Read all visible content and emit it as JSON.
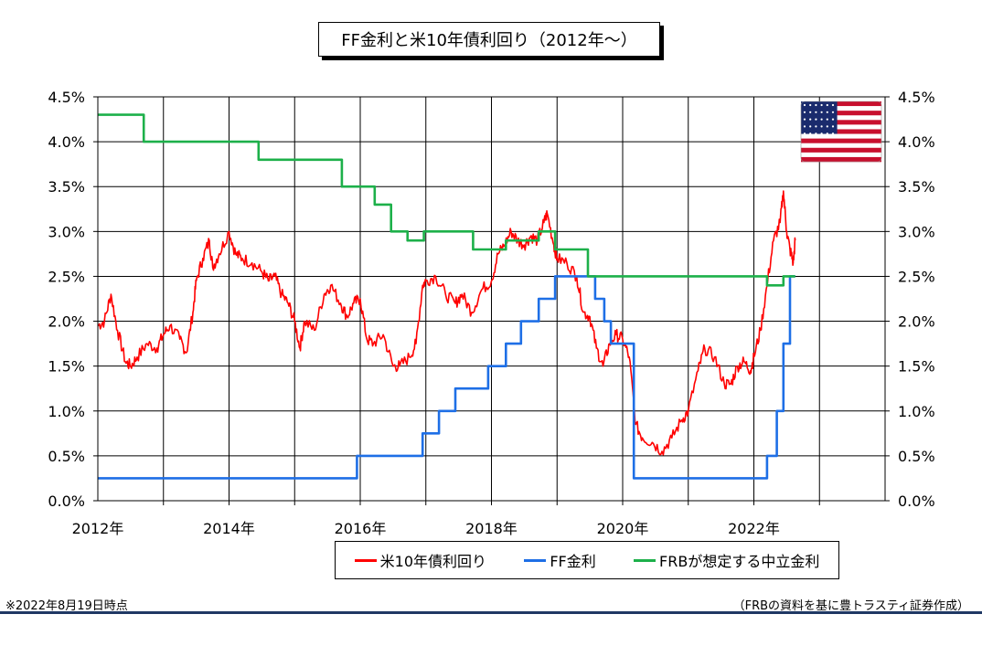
{
  "chart_data": {
    "type": "line",
    "title": "FF金利と米10年債利回り（2012年～）",
    "y_axis": {
      "min": 0,
      "max": 4.5,
      "step": 0.5,
      "tick_labels": [
        "0.0%",
        "0.5%",
        "1.0%",
        "1.5%",
        "2.0%",
        "2.5%",
        "3.0%",
        "3.5%",
        "4.0%",
        "4.5%"
      ]
    },
    "x_axis": {
      "min": 2012,
      "max": 2024,
      "tick_labels": [
        {
          "year": 2012,
          "label": "2012年"
        },
        {
          "year": 2014,
          "label": "2014年"
        },
        {
          "year": 2016,
          "label": "2016年"
        },
        {
          "year": 2018,
          "label": "2018年"
        },
        {
          "year": 2020,
          "label": "2020年"
        },
        {
          "year": 2022,
          "label": "2022年"
        }
      ]
    },
    "grid": true,
    "legend_position": "bottom",
    "series": [
      {
        "name": "米10年債利回り",
        "color": "#ff0000",
        "style": "line",
        "points": [
          [
            2012.0,
            1.95
          ],
          [
            2012.1,
            2.0
          ],
          [
            2012.2,
            2.3
          ],
          [
            2012.3,
            1.9
          ],
          [
            2012.42,
            1.55
          ],
          [
            2012.5,
            1.5
          ],
          [
            2012.6,
            1.6
          ],
          [
            2012.75,
            1.75
          ],
          [
            2012.9,
            1.7
          ],
          [
            2013.0,
            1.85
          ],
          [
            2013.1,
            1.95
          ],
          [
            2013.25,
            1.8
          ],
          [
            2013.35,
            1.65
          ],
          [
            2013.45,
            2.1
          ],
          [
            2013.5,
            2.45
          ],
          [
            2013.6,
            2.7
          ],
          [
            2013.7,
            2.9
          ],
          [
            2013.75,
            2.6
          ],
          [
            2013.85,
            2.75
          ],
          [
            2014.0,
            3.0
          ],
          [
            2014.1,
            2.75
          ],
          [
            2014.2,
            2.7
          ],
          [
            2014.35,
            2.65
          ],
          [
            2014.5,
            2.55
          ],
          [
            2014.6,
            2.45
          ],
          [
            2014.7,
            2.5
          ],
          [
            2014.8,
            2.3
          ],
          [
            2014.9,
            2.2
          ],
          [
            2015.0,
            2.0
          ],
          [
            2015.08,
            1.7
          ],
          [
            2015.15,
            2.0
          ],
          [
            2015.3,
            1.9
          ],
          [
            2015.45,
            2.3
          ],
          [
            2015.55,
            2.4
          ],
          [
            2015.7,
            2.2
          ],
          [
            2015.8,
            2.05
          ],
          [
            2015.9,
            2.2
          ],
          [
            2016.0,
            2.25
          ],
          [
            2016.1,
            1.8
          ],
          [
            2016.2,
            1.75
          ],
          [
            2016.35,
            1.85
          ],
          [
            2016.5,
            1.5
          ],
          [
            2016.6,
            1.5
          ],
          [
            2016.75,
            1.6
          ],
          [
            2016.85,
            1.75
          ],
          [
            2016.95,
            2.4
          ],
          [
            2017.0,
            2.45
          ],
          [
            2017.15,
            2.5
          ],
          [
            2017.3,
            2.3
          ],
          [
            2017.45,
            2.2
          ],
          [
            2017.55,
            2.3
          ],
          [
            2017.7,
            2.1
          ],
          [
            2017.85,
            2.35
          ],
          [
            2018.0,
            2.45
          ],
          [
            2018.1,
            2.75
          ],
          [
            2018.2,
            2.85
          ],
          [
            2018.3,
            3.0
          ],
          [
            2018.4,
            2.9
          ],
          [
            2018.5,
            2.85
          ],
          [
            2018.6,
            2.95
          ],
          [
            2018.7,
            2.9
          ],
          [
            2018.8,
            3.1
          ],
          [
            2018.85,
            3.2
          ],
          [
            2018.95,
            2.85
          ],
          [
            2019.0,
            2.7
          ],
          [
            2019.15,
            2.65
          ],
          [
            2019.3,
            2.5
          ],
          [
            2019.4,
            2.1
          ],
          [
            2019.5,
            2.05
          ],
          [
            2019.6,
            1.7
          ],
          [
            2019.7,
            1.5
          ],
          [
            2019.8,
            1.75
          ],
          [
            2019.9,
            1.85
          ],
          [
            2020.0,
            1.8
          ],
          [
            2020.1,
            1.6
          ],
          [
            2020.2,
            0.85
          ],
          [
            2020.3,
            0.7
          ],
          [
            2020.45,
            0.65
          ],
          [
            2020.6,
            0.55
          ],
          [
            2020.75,
            0.7
          ],
          [
            2020.9,
            0.9
          ],
          [
            2021.0,
            1.0
          ],
          [
            2021.15,
            1.45
          ],
          [
            2021.25,
            1.7
          ],
          [
            2021.4,
            1.6
          ],
          [
            2021.55,
            1.3
          ],
          [
            2021.65,
            1.3
          ],
          [
            2021.75,
            1.5
          ],
          [
            2021.85,
            1.55
          ],
          [
            2021.95,
            1.45
          ],
          [
            2022.0,
            1.6
          ],
          [
            2022.1,
            1.9
          ],
          [
            2022.2,
            2.4
          ],
          [
            2022.3,
            2.9
          ],
          [
            2022.4,
            3.1
          ],
          [
            2022.45,
            3.45
          ],
          [
            2022.5,
            3.0
          ],
          [
            2022.55,
            2.8
          ],
          [
            2022.6,
            2.65
          ],
          [
            2022.63,
            2.9
          ]
        ]
      },
      {
        "name": "FF金利",
        "color": "#1e6fe6",
        "style": "step",
        "points": [
          [
            2012.0,
            0.25
          ],
          [
            2015.95,
            0.25
          ],
          [
            2015.95,
            0.5
          ],
          [
            2016.95,
            0.5
          ],
          [
            2016.95,
            0.75
          ],
          [
            2017.2,
            0.75
          ],
          [
            2017.2,
            1.0
          ],
          [
            2017.45,
            1.0
          ],
          [
            2017.45,
            1.25
          ],
          [
            2017.95,
            1.25
          ],
          [
            2017.95,
            1.5
          ],
          [
            2018.22,
            1.5
          ],
          [
            2018.22,
            1.75
          ],
          [
            2018.45,
            1.75
          ],
          [
            2018.45,
            2.0
          ],
          [
            2018.72,
            2.0
          ],
          [
            2018.72,
            2.25
          ],
          [
            2018.97,
            2.25
          ],
          [
            2018.97,
            2.5
          ],
          [
            2019.58,
            2.5
          ],
          [
            2019.58,
            2.25
          ],
          [
            2019.72,
            2.25
          ],
          [
            2019.72,
            2.0
          ],
          [
            2019.82,
            2.0
          ],
          [
            2019.82,
            1.75
          ],
          [
            2020.17,
            1.75
          ],
          [
            2020.17,
            0.25
          ],
          [
            2022.2,
            0.25
          ],
          [
            2022.2,
            0.5
          ],
          [
            2022.35,
            0.5
          ],
          [
            2022.35,
            1.0
          ],
          [
            2022.45,
            1.0
          ],
          [
            2022.45,
            1.75
          ],
          [
            2022.55,
            1.75
          ],
          [
            2022.55,
            2.5
          ],
          [
            2022.63,
            2.5
          ]
        ]
      },
      {
        "name": "FRBが想定する中立金利",
        "color": "#1db04a",
        "style": "step",
        "points": [
          [
            2012.0,
            4.3
          ],
          [
            2012.7,
            4.3
          ],
          [
            2012.7,
            4.0
          ],
          [
            2014.45,
            4.0
          ],
          [
            2014.45,
            3.8
          ],
          [
            2015.72,
            3.8
          ],
          [
            2015.72,
            3.5
          ],
          [
            2016.22,
            3.5
          ],
          [
            2016.22,
            3.3
          ],
          [
            2016.47,
            3.3
          ],
          [
            2016.47,
            3.0
          ],
          [
            2016.72,
            3.0
          ],
          [
            2016.72,
            2.9
          ],
          [
            2016.97,
            2.9
          ],
          [
            2016.97,
            3.0
          ],
          [
            2017.72,
            3.0
          ],
          [
            2017.72,
            2.8
          ],
          [
            2018.22,
            2.8
          ],
          [
            2018.22,
            2.9
          ],
          [
            2018.72,
            2.9
          ],
          [
            2018.72,
            3.0
          ],
          [
            2018.97,
            3.0
          ],
          [
            2018.97,
            2.8
          ],
          [
            2019.47,
            2.8
          ],
          [
            2019.47,
            2.5
          ],
          [
            2022.2,
            2.5
          ],
          [
            2022.2,
            2.4
          ],
          [
            2022.45,
            2.4
          ],
          [
            2022.45,
            2.5
          ],
          [
            2022.63,
            2.5
          ]
        ]
      }
    ]
  },
  "legend": [
    {
      "label": "米10年債利回り",
      "color": "#ff0000"
    },
    {
      "label": "FF金利",
      "color": "#1e6fe6"
    },
    {
      "label": "FRBが想定する中立金利",
      "color": "#1db04a"
    }
  ],
  "footer": {
    "note_left": "※2022年8月19日時点",
    "note_right": "（FRBの資料を基に豊トラスティ証券作成）"
  },
  "flag": {
    "icon": "us-flag-icon"
  }
}
